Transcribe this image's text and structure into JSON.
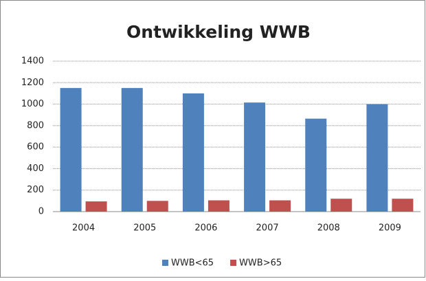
{
  "chart_data": {
    "type": "bar",
    "title": "Ontwikkeling WWB",
    "categories": [
      "2004",
      "2005",
      "2006",
      "2007",
      "2008",
      "2009"
    ],
    "series": [
      {
        "name": "WWB<65",
        "color": "#4f81bd",
        "values": [
          1150,
          1150,
          1100,
          1015,
          865,
          1000
        ]
      },
      {
        "name": "WWB>65",
        "color": "#c0504d",
        "values": [
          95,
          100,
          105,
          105,
          120,
          120
        ]
      }
    ],
    "ylim": [
      0,
      1400
    ],
    "yticks": [
      0,
      200,
      400,
      600,
      800,
      1000,
      1200,
      1400
    ],
    "grid": true,
    "legend": "bottom"
  }
}
